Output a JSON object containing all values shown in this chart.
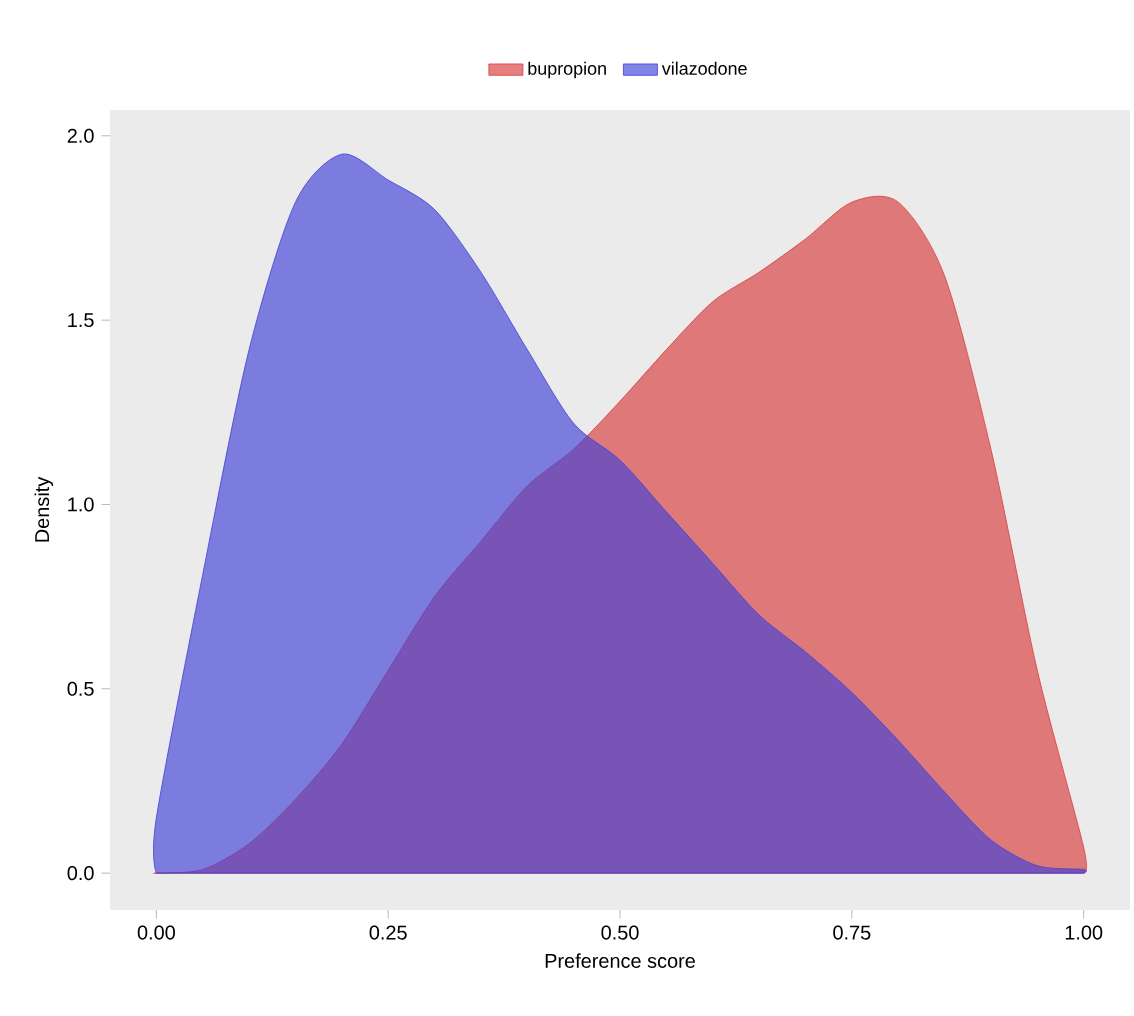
{
  "chart_data": {
    "type": "area",
    "xlabel": "Preference score",
    "ylabel": "Density",
    "legend": "top",
    "grid": false,
    "xlim": [
      -0.05,
      1.05
    ],
    "xticks": [
      {
        "value": 0,
        "label": "0.00"
      },
      {
        "value": 0.25,
        "label": "0.25"
      },
      {
        "value": 0.5,
        "label": "0.50"
      },
      {
        "value": 0.75,
        "label": "0.75"
      },
      {
        "value": 1,
        "label": "1.00"
      }
    ],
    "ylim": [
      -0.1,
      2.07
    ],
    "yticks": [
      {
        "value": 0,
        "label": "0.0"
      },
      {
        "value": 0.5,
        "label": "0.5"
      },
      {
        "value": 1,
        "label": "1.0"
      },
      {
        "value": 1.5,
        "label": "1.5"
      },
      {
        "value": 2,
        "label": "2.0"
      }
    ],
    "x": [
      0,
      0.05,
      0.1,
      0.15,
      0.2,
      0.25,
      0.3,
      0.35,
      0.4,
      0.45,
      0.5,
      0.55,
      0.6,
      0.65,
      0.7,
      0.75,
      0.8,
      0.85,
      0.9,
      0.95,
      1.0
    ],
    "series": [
      {
        "name": "bupropion",
        "color": "#d93b3b",
        "values": [
          0,
          0.01,
          0.08,
          0.2,
          0.35,
          0.55,
          0.75,
          0.9,
          1.05,
          1.15,
          1.28,
          1.42,
          1.55,
          1.63,
          1.72,
          1.82,
          1.82,
          1.62,
          1.15,
          0.55,
          0.07
        ]
      },
      {
        "name": "vilazodone",
        "color": "#4040d9",
        "values": [
          0.15,
          0.81,
          1.42,
          1.82,
          1.95,
          1.88,
          1.8,
          1.63,
          1.42,
          1.22,
          1.12,
          0.98,
          0.84,
          0.7,
          0.6,
          0.49,
          0.36,
          0.22,
          0.09,
          0.02,
          0.01
        ]
      }
    ]
  }
}
